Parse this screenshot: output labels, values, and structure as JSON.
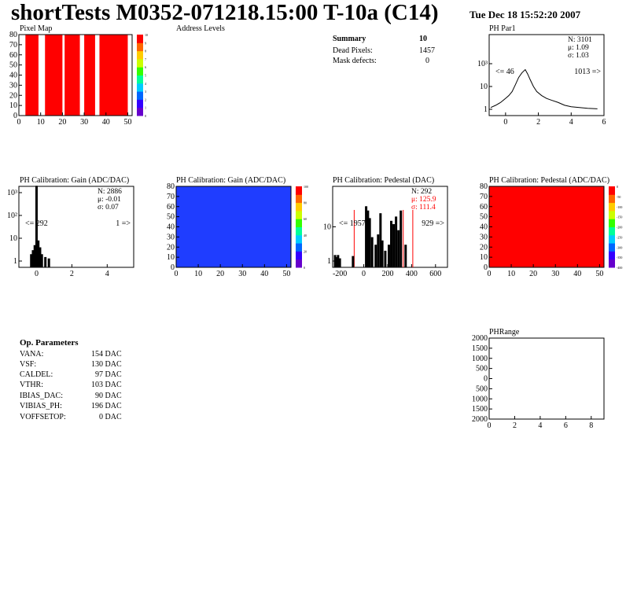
{
  "header": {
    "title": "shortTests M0352-071218.15:00 T-10a (C14)",
    "date": "Tue Dec 18 15:52:20 2007"
  },
  "panels": {
    "pixel_map": "Pixel Map",
    "address_levels": "Address Levels",
    "ph_par1": "PH Par1",
    "gain_hist": "PH Calibration: Gain (ADC/DAC)",
    "gain_map": "PH Calibration: Gain (ADC/DAC)",
    "ped_hist": "PH Calibration: Pedestal (DAC)",
    "ped_map": "PH Calibration: Pedestal (ADC/DAC)",
    "ph_range": "PHRange"
  },
  "summary": {
    "heading": "Summary",
    "heading_value": "10",
    "rows": [
      {
        "label": "Dead Pixels:",
        "value": "1457"
      },
      {
        "label": "Mask defects:",
        "value": "0"
      }
    ]
  },
  "op_params": {
    "heading": "Op. Parameters",
    "rows": [
      {
        "name": "VANA:",
        "value": "154 DAC"
      },
      {
        "name": "VSF:",
        "value": "130 DAC"
      },
      {
        "name": "CALDEL:",
        "value": "97 DAC"
      },
      {
        "name": "VTHR:",
        "value": "103 DAC"
      },
      {
        "name": "IBIAS_DAC:",
        "value": "90 DAC"
      },
      {
        "name": "VIBIAS_PH:",
        "value": "196 DAC"
      },
      {
        "name": "VOFFSETOP:",
        "value": "0 DAC"
      }
    ]
  },
  "chart_data": [
    {
      "id": "pixel_map",
      "type": "heatmap",
      "title": "Pixel Map",
      "xlim": [
        0,
        52
      ],
      "ylim": [
        0,
        80
      ],
      "xticks": [
        "0",
        "10",
        "20",
        "30",
        "40",
        "50"
      ],
      "yticks": [
        "0",
        "10",
        "20",
        "30",
        "40",
        "50",
        "60",
        "70",
        "80"
      ],
      "fill_color": "#ff0000",
      "empty_color": "#ffffff",
      "empty_columns": [
        [
          0,
          3
        ],
        [
          9,
          12
        ],
        [
          20,
          21
        ],
        [
          28,
          30
        ],
        [
          35,
          37
        ],
        [
          50,
          52
        ]
      ],
      "colorbar_ticks": [
        "0",
        "1",
        "2",
        "3",
        "4",
        "5",
        "6",
        "7",
        "8",
        "9",
        "10"
      ]
    },
    {
      "id": "ph_par1",
      "type": "bar",
      "title": "PH Par1",
      "log_y": true,
      "xlim": [
        -1,
        6
      ],
      "xticks": [
        "0",
        "2",
        "4",
        "6"
      ],
      "yticks": [
        "1",
        "10",
        "10³"
      ],
      "stats": {
        "N": "3101",
        "mean": "1.09",
        "sigma": "1.03"
      },
      "underflow": "<= 46",
      "overflow": "1013 =>"
    },
    {
      "id": "gain_hist",
      "type": "bar",
      "title": "PH Calibration: Gain (ADC/DAC)",
      "log_y": true,
      "xlim": [
        -1,
        5.5
      ],
      "xticks": [
        "0",
        "2",
        "4"
      ],
      "yticks": [
        "1",
        "10",
        "10²",
        "10³"
      ],
      "stats": {
        "N": "2886",
        "mean": "-0.01",
        "sigma": "0.07"
      },
      "underflow": "<= 292",
      "overflow": "1 =>"
    },
    {
      "id": "gain_map",
      "type": "heatmap",
      "title": "PH Calibration: Gain (ADC/DAC)",
      "xlim": [
        0,
        52
      ],
      "ylim": [
        0,
        80
      ],
      "xticks": [
        "0",
        "10",
        "20",
        "30",
        "40",
        "50"
      ],
      "yticks": [
        "0",
        "10",
        "20",
        "30",
        "40",
        "50",
        "60",
        "70",
        "80"
      ],
      "fill_color": "#1f3dff",
      "colorbar_ticks": [
        "0",
        "20",
        "40",
        "60",
        "80",
        "100"
      ]
    },
    {
      "id": "ped_hist",
      "type": "bar",
      "title": "PH Calibration: Pedestal (DAC)",
      "log_y": true,
      "xlim": [
        -260,
        700
      ],
      "xticks": [
        "-200",
        "0",
        "200",
        "400",
        "600"
      ],
      "yticks": [
        "1",
        "10"
      ],
      "stats": {
        "N": "292",
        "mean": "125.9",
        "sigma": "111.4"
      },
      "underflow": "<= 1957",
      "overflow": "929 =>",
      "red_lines": [
        -80,
        330,
        410
      ],
      "bars": [
        {
          "x": -240,
          "y": 1.5
        },
        {
          "x": -230,
          "y": 1.3
        },
        {
          "x": -215,
          "y": 1.5
        },
        {
          "x": -200,
          "y": 1.2
        },
        {
          "x": -90,
          "y": 1.4
        },
        {
          "x": 20,
          "y": 40
        },
        {
          "x": 35,
          "y": 30
        },
        {
          "x": 50,
          "y": 18
        },
        {
          "x": 70,
          "y": 5
        },
        {
          "x": 100,
          "y": 3
        },
        {
          "x": 120,
          "y": 6
        },
        {
          "x": 140,
          "y": 25
        },
        {
          "x": 155,
          "y": 4
        },
        {
          "x": 180,
          "y": 2
        },
        {
          "x": 210,
          "y": 3
        },
        {
          "x": 230,
          "y": 15
        },
        {
          "x": 250,
          "y": 12
        },
        {
          "x": 270,
          "y": 20
        },
        {
          "x": 290,
          "y": 8
        },
        {
          "x": 310,
          "y": 30
        },
        {
          "x": 350,
          "y": 3
        }
      ]
    },
    {
      "id": "ped_map",
      "type": "heatmap",
      "title": "PH Calibration: Pedestal (ADC/DAC)",
      "xlim": [
        0,
        52
      ],
      "ylim": [
        0,
        80
      ],
      "xticks": [
        "0",
        "10",
        "20",
        "30",
        "40",
        "50"
      ],
      "yticks": [
        "0",
        "10",
        "20",
        "30",
        "40",
        "50",
        "60",
        "70",
        "80"
      ],
      "fill_color": "#ff0000",
      "colorbar_ticks": [
        "-400",
        "-350",
        "-300",
        "-250",
        "-200",
        "-150",
        "-100",
        "-50",
        "0"
      ]
    },
    {
      "id": "ph_range",
      "type": "line",
      "title": "PHRange",
      "xlim": [
        0,
        9
      ],
      "ylim": [
        -2000,
        2000
      ],
      "xticks": [
        "0",
        "2",
        "4",
        "6",
        "8"
      ],
      "yticks": [
        "2000",
        "1500",
        "1000",
        "500",
        "0",
        "500",
        "1000",
        "1500",
        "2000"
      ]
    }
  ]
}
